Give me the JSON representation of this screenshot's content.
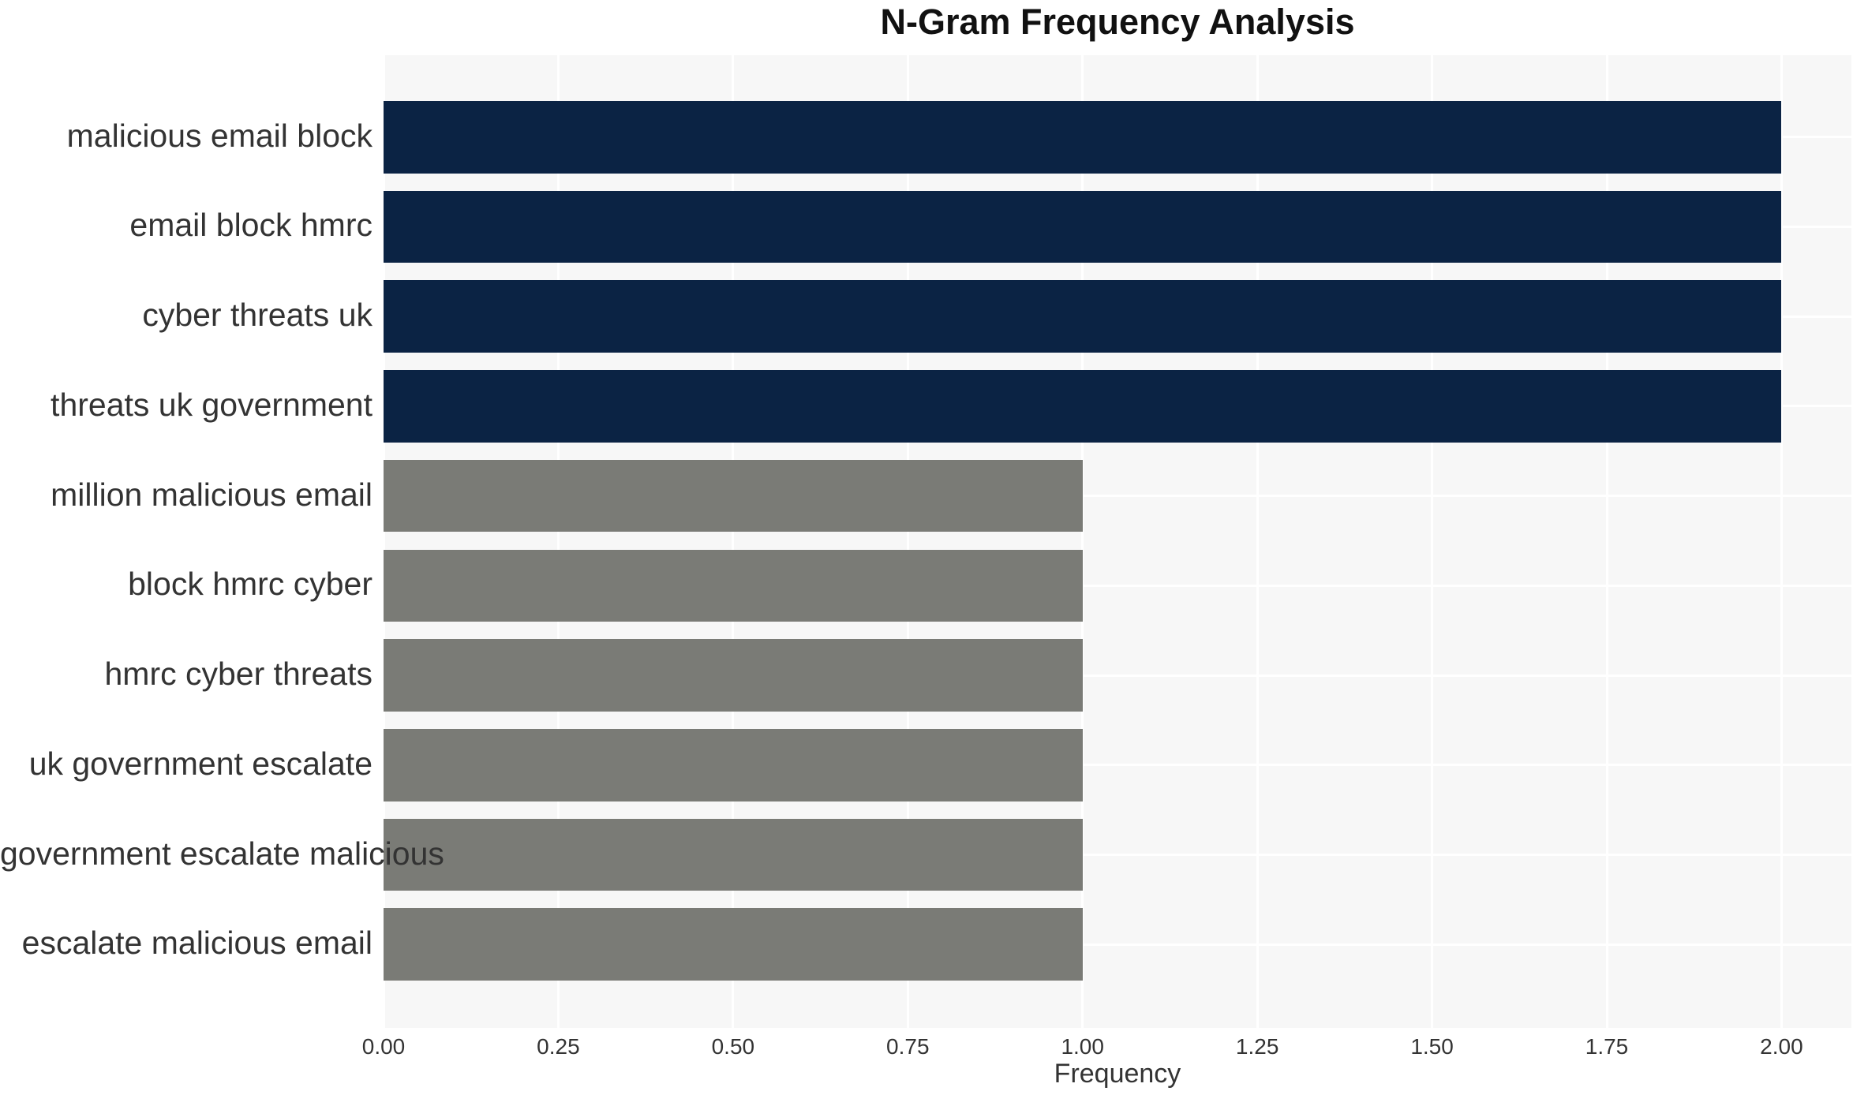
{
  "chart_data": {
    "type": "bar",
    "orientation": "horizontal",
    "title": "N-Gram Frequency Analysis",
    "xlabel": "Frequency",
    "ylabel": "",
    "categories": [
      "malicious email block",
      "email block hmrc",
      "cyber threats uk",
      "threats uk government",
      "million malicious email",
      "block hmrc cyber",
      "hmrc cyber threats",
      "uk government escalate",
      "government escalate malicious",
      "escalate malicious email"
    ],
    "values": [
      2,
      2,
      2,
      2,
      1,
      1,
      1,
      1,
      1,
      1
    ],
    "bar_colors": [
      "#0b2344",
      "#0b2344",
      "#0b2344",
      "#0b2344",
      "#7a7b76",
      "#7a7b76",
      "#7a7b76",
      "#7a7b76",
      "#7a7b76",
      "#7a7b76"
    ],
    "xlim": [
      0,
      2.1
    ],
    "xtick_labels": [
      "0.00",
      "0.25",
      "0.50",
      "0.75",
      "1.00",
      "1.25",
      "1.50",
      "1.75",
      "2.00"
    ],
    "grid": true,
    "legend": false,
    "colors": {
      "high_frequency_bar": "#0b2344",
      "low_frequency_bar": "#7a7b76",
      "plot_background": "#f7f7f7",
      "gridline": "#ffffff",
      "tick_text": "#333333",
      "title_text": "#111111"
    }
  }
}
